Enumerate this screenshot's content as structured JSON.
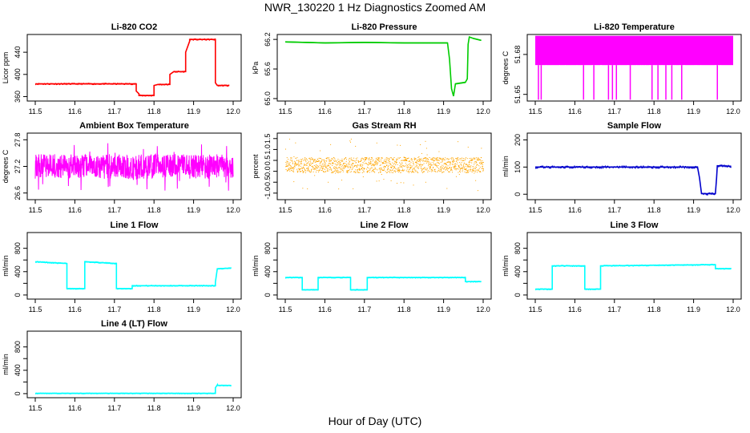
{
  "figure": {
    "title": "NWR_130220  1 Hz Diagnostics Zoomed AM",
    "xlabel": "Hour of Day (UTC)"
  },
  "chart_data": [
    {
      "id": "co2",
      "type": "line",
      "title": "Li-820 CO2",
      "ylabel": "Licor ppm",
      "color": "#ff0000",
      "xlim": [
        11.5,
        12.0
      ],
      "ylim": [
        352,
        472
      ],
      "yticks": [
        360,
        400,
        440
      ],
      "yticks_labels": [
        "360",
        "400",
        "440"
      ],
      "xticks": [
        11.5,
        11.6,
        11.7,
        11.8,
        11.9,
        12.0
      ],
      "xticks_labels": [
        "11.5",
        "11.6",
        "11.7",
        "11.8",
        "11.9",
        "12.0"
      ],
      "x": [
        11.5,
        11.755,
        11.755,
        11.762,
        11.762,
        11.8,
        11.8,
        11.81,
        11.81,
        11.84,
        11.84,
        11.85,
        11.85,
        11.88,
        11.88,
        11.89,
        11.89,
        11.955,
        11.955,
        11.96,
        11.96,
        11.99
      ],
      "y": [
        383,
        383,
        370,
        365,
        362,
        362,
        380,
        382,
        382,
        382,
        400,
        405,
        405,
        405,
        440,
        460,
        463,
        463,
        385,
        380,
        380,
        380
      ]
    },
    {
      "id": "pressure",
      "type": "line",
      "title": "Li-820 Pressure",
      "ylabel": "kPa",
      "color": "#00cc00",
      "xlim": [
        11.5,
        12.0
      ],
      "ylim": [
        64.95,
        66.3
      ],
      "yticks": [
        65.0,
        65.6,
        66.2
      ],
      "yticks_labels": [
        "65.0",
        "65.6",
        "66.2"
      ],
      "xticks": [
        11.5,
        11.6,
        11.7,
        11.8,
        11.9,
        12.0
      ],
      "xticks_labels": [
        "11.5",
        "11.6",
        "11.7",
        "11.8",
        "11.9",
        "12.0"
      ],
      "x": [
        11.5,
        11.6,
        11.7,
        11.8,
        11.91,
        11.915,
        11.92,
        11.925,
        11.93,
        11.955,
        11.96,
        11.962,
        11.965,
        11.975,
        11.995
      ],
      "y": [
        66.15,
        66.13,
        66.14,
        66.13,
        66.13,
        65.8,
        65.2,
        65.05,
        65.3,
        65.33,
        65.4,
        66.1,
        66.25,
        66.22,
        66.18
      ]
    },
    {
      "id": "licor_temp",
      "type": "line",
      "title": "Li-820 Temperature",
      "ylabel": "degrees C",
      "color": "#ff00ff",
      "xlim": [
        11.5,
        12.0
      ],
      "ylim": [
        51.645,
        51.695
      ],
      "yticks": [
        51.65,
        51.68
      ],
      "yticks_labels": [
        "51.65",
        "51.68"
      ],
      "xticks": [
        11.5,
        11.6,
        11.7,
        11.8,
        11.9,
        12.0
      ],
      "xticks_labels": [
        "11.5",
        "11.6",
        "11.7",
        "11.8",
        "11.9",
        "12.0"
      ],
      "band": [
        51.672,
        51.694
      ],
      "dips": [
        11.508,
        11.515,
        11.622,
        11.648,
        11.685,
        11.695,
        11.705,
        11.74,
        11.795,
        11.81,
        11.83,
        11.845,
        11.87,
        11.96
      ]
    },
    {
      "id": "ambient_temp",
      "type": "line",
      "title": "Ambient Box Temperature",
      "ylabel": "degrees C",
      "color": "#ff00ff",
      "xlim": [
        11.5,
        12.0
      ],
      "ylim": [
        26.45,
        27.95
      ],
      "yticks": [
        26.6,
        27.2,
        27.8
      ],
      "yticks_labels": [
        "26.6",
        "27.2",
        "27.8"
      ],
      "xticks": [
        11.5,
        11.6,
        11.7,
        11.8,
        11.9,
        12.0
      ],
      "xticks_labels": [
        "11.5",
        "11.6",
        "11.7",
        "11.8",
        "11.9",
        "12.0"
      ],
      "x": [
        11.5,
        11.6,
        11.7,
        11.8,
        11.9,
        11.99
      ],
      "y": [
        27.2,
        27.15,
        27.2,
        27.2,
        27.25,
        27.2
      ]
    },
    {
      "id": "rh",
      "type": "scatter",
      "title": "Gas Stream RH",
      "ylabel": "percent",
      "color": "#ffa500",
      "xlim": [
        11.5,
        12.0
      ],
      "ylim": [
        -1.3,
        1.75
      ],
      "yticks": [
        -1.0,
        -0.5,
        0.0,
        0.5,
        1.0,
        1.5
      ],
      "yticks_labels": [
        "-1.0",
        "-0.5",
        "0.0",
        "0.5",
        "1.0",
        "1.5"
      ],
      "xticks": [
        11.5,
        11.6,
        11.7,
        11.8,
        11.9,
        12.0
      ],
      "xticks_labels": [
        "11.5",
        "11.6",
        "11.7",
        "11.8",
        "11.9",
        "12.0"
      ],
      "x": [
        11.5,
        11.6,
        11.7,
        11.8,
        11.9,
        11.99
      ],
      "y": [
        0.3,
        0.25,
        0.3,
        0.3,
        0.35,
        0.3
      ]
    },
    {
      "id": "sample_flow",
      "type": "line",
      "title": "Sample Flow",
      "ylabel": "ml/min",
      "color": "#0000cc",
      "xlim": [
        11.5,
        12.0
      ],
      "ylim": [
        -20,
        225
      ],
      "yticks": [
        0,
        100,
        200
      ],
      "yticks_labels": [
        "0",
        "100",
        "200"
      ],
      "xticks": [
        11.5,
        11.6,
        11.7,
        11.8,
        11.9,
        12.0
      ],
      "xticks_labels": [
        "11.5",
        "11.6",
        "11.7",
        "11.8",
        "11.9",
        "12.0"
      ],
      "x": [
        11.5,
        11.91,
        11.915,
        11.92,
        11.955,
        11.958,
        11.96,
        11.995
      ],
      "y": [
        100,
        100,
        60,
        2,
        2,
        60,
        105,
        103
      ]
    },
    {
      "id": "line1",
      "type": "line",
      "title": "Line 1 Flow",
      "ylabel": "ml/min",
      "color": "#00ffff",
      "xlim": [
        11.5,
        12.0
      ],
      "ylim": [
        -70,
        1070
      ],
      "yticks": [
        0,
        200,
        400,
        600,
        800
      ],
      "yticks_labels": [
        "0",
        "400",
        "800"
      ],
      "xticks": [
        11.5,
        11.6,
        11.7,
        11.8,
        11.9,
        12.0
      ],
      "xticks_labels": [
        "11.5",
        "11.6",
        "11.7",
        "11.8",
        "11.9",
        "12.0"
      ],
      "x": [
        11.5,
        11.58,
        11.58,
        11.625,
        11.625,
        11.705,
        11.705,
        11.745,
        11.745,
        11.955,
        11.955,
        11.96,
        11.995
      ],
      "y": [
        570,
        540,
        110,
        110,
        570,
        540,
        110,
        110,
        160,
        160,
        220,
        450,
        460
      ]
    },
    {
      "id": "line2",
      "type": "line",
      "title": "Line 2 Flow",
      "ylabel": "ml/min",
      "color": "#00ffff",
      "xlim": [
        11.5,
        12.0
      ],
      "ylim": [
        -70,
        1070
      ],
      "yticks": [
        0,
        200,
        400,
        600,
        800
      ],
      "yticks_labels": [
        "0",
        "400",
        "800"
      ],
      "xticks": [
        11.5,
        11.6,
        11.7,
        11.8,
        11.9,
        12.0
      ],
      "xticks_labels": [
        "11.5",
        "11.6",
        "11.7",
        "11.8",
        "11.9",
        "12.0"
      ],
      "x": [
        11.5,
        11.543,
        11.543,
        11.583,
        11.583,
        11.665,
        11.665,
        11.707,
        11.707,
        11.955,
        11.955,
        11.995
      ],
      "y": [
        300,
        300,
        90,
        90,
        300,
        300,
        90,
        90,
        300,
        300,
        230,
        230
      ]
    },
    {
      "id": "line3",
      "type": "line",
      "title": "Line 3 Flow",
      "ylabel": "ml/min",
      "color": "#00ffff",
      "xlim": [
        11.5,
        12.0
      ],
      "ylim": [
        -70,
        1070
      ],
      "yticks": [
        0,
        200,
        400,
        600,
        800
      ],
      "yticks_labels": [
        "0",
        "400",
        "800"
      ],
      "xticks": [
        11.5,
        11.6,
        11.7,
        11.8,
        11.9,
        12.0
      ],
      "xticks_labels": [
        "11.5",
        "11.6",
        "11.7",
        "11.8",
        "11.9",
        "12.0"
      ],
      "x": [
        11.5,
        11.543,
        11.543,
        11.625,
        11.625,
        11.665,
        11.665,
        11.955,
        11.955,
        11.995
      ],
      "y": [
        100,
        100,
        500,
        500,
        100,
        100,
        500,
        520,
        450,
        450
      ]
    },
    {
      "id": "line4",
      "type": "line",
      "title": "Line 4 (LT) Flow",
      "ylabel": "ml/min",
      "color": "#00ffff",
      "xlim": [
        11.5,
        12.0
      ],
      "ylim": [
        -70,
        1070
      ],
      "yticks": [
        0,
        200,
        400,
        600,
        800
      ],
      "yticks_labels": [
        "0",
        "400",
        "800"
      ],
      "xticks": [
        11.5,
        11.6,
        11.7,
        11.8,
        11.9,
        12.0
      ],
      "xticks_labels": [
        "11.5",
        "11.6",
        "11.7",
        "11.8",
        "11.9",
        "12.0"
      ],
      "x": [
        11.5,
        11.955,
        11.955,
        11.96,
        11.96,
        11.995
      ],
      "y": [
        5,
        5,
        100,
        150,
        140,
        140
      ]
    }
  ]
}
